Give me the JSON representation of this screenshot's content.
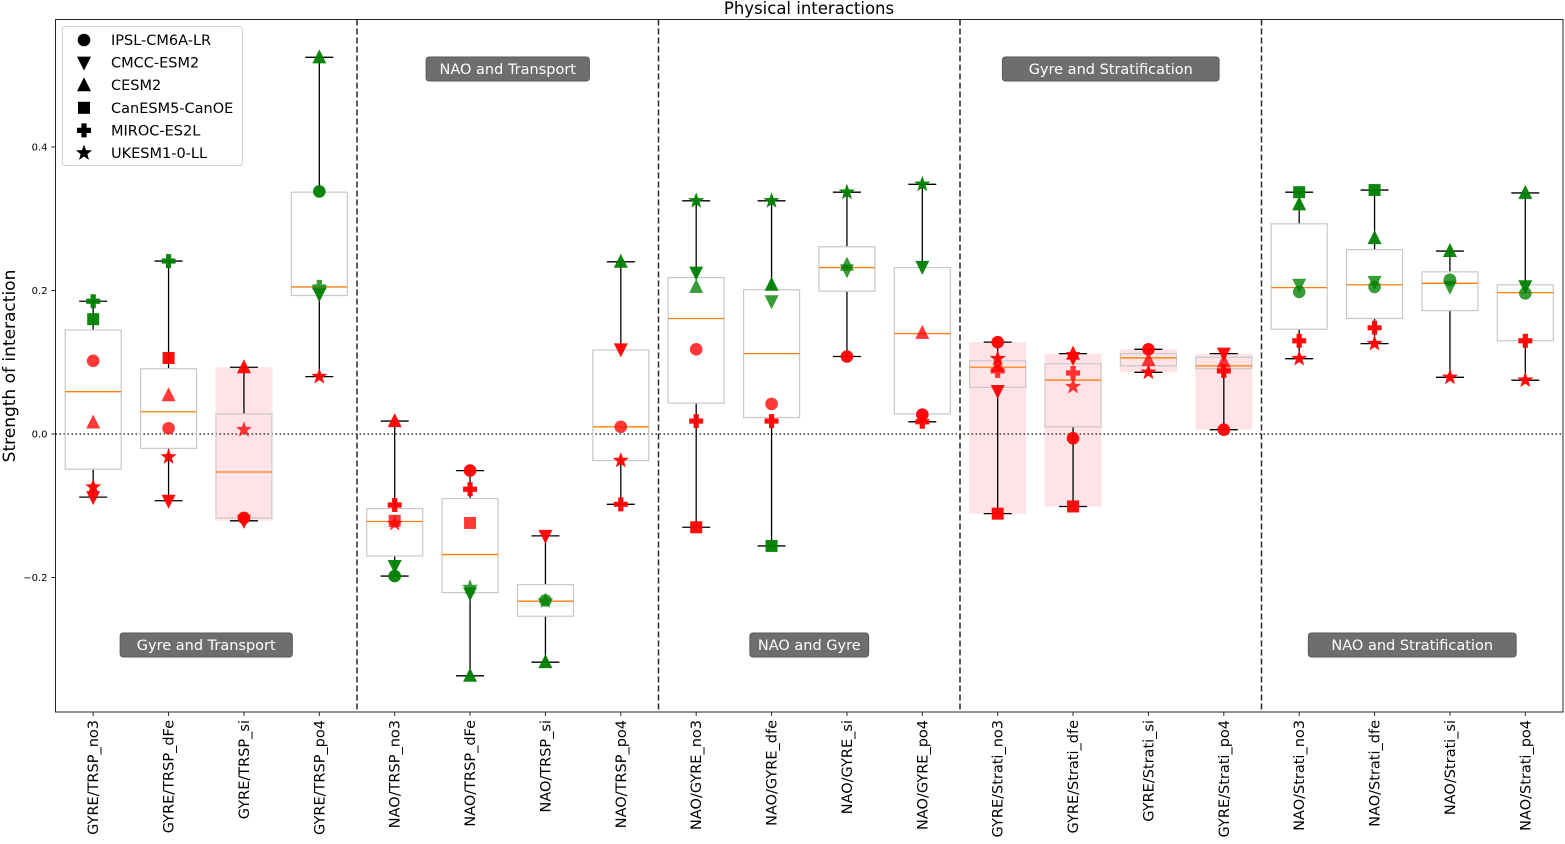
{
  "chart_data": {
    "type": "box-scatter",
    "title": "Physical interactions",
    "xlabel": "",
    "ylabel": "Strength of interaction",
    "ylim": [
      -0.382,
      0.58
    ],
    "yticks": [
      -0.2,
      0.0,
      0.2,
      0.4
    ],
    "ytick_labels": [
      "−0.2",
      "0.0",
      "0.2",
      "0.4"
    ],
    "zero_line": true,
    "grid": false,
    "legend_position": "top-left",
    "legend": [
      {
        "model": "IPSL-CM6A-LR",
        "marker": "circle"
      },
      {
        "model": "CMCC-ESM2",
        "marker": "triangle-down"
      },
      {
        "model": "CESM2",
        "marker": "triangle-up"
      },
      {
        "model": "CanESM5-CanOE",
        "marker": "square"
      },
      {
        "model": "MIROC-ES2L",
        "marker": "plus"
      },
      {
        "model": "UKESM1-0-LL",
        "marker": "star"
      }
    ],
    "colors": {
      "positive_significant": "#008000",
      "negative_or_other": "#ff0000",
      "median": "#ff7f0e",
      "box_edge": "#c8c8c8",
      "shade": "#ffc0c8",
      "annotation_bg": "#6e6e6e"
    },
    "groups": [
      {
        "label": "Gyre and Transport",
        "columns": [
          0,
          3
        ],
        "annotation_position": "bottom"
      },
      {
        "label": "NAO and Transport",
        "columns": [
          4,
          7
        ],
        "annotation_position": "top"
      },
      {
        "label": "NAO and Gyre",
        "columns": [
          8,
          11
        ],
        "annotation_position": "bottom"
      },
      {
        "label": "Gyre and Stratification",
        "columns": [
          12,
          15
        ],
        "annotation_position": "top"
      },
      {
        "label": "NAO and Stratification",
        "columns": [
          16,
          19
        ],
        "annotation_position": "bottom"
      }
    ],
    "categories": [
      "GYRE/TRSP_no3",
      "GYRE/TRSP_dFe",
      "GYRE/TRSP_si",
      "GYRE/TRSP_po4",
      "NAO/TRSP_no3",
      "NAO/TRSP_dFe",
      "NAO/TRSP_si",
      "NAO/TRSP_po4",
      "NAO/GYRE_no3",
      "NAO/GYRE_dfe",
      "NAO/GYRE_si",
      "NAO/GYRE_po4",
      "GYRE/Strati_no3",
      "GYRE/Strati_dfe",
      "GYRE/Strati_si",
      "GYRE/Strati_po4",
      "NAO/Strati_no3",
      "NAO/Strati_dfe",
      "NAO/Strati_si",
      "NAO/Strati_po4"
    ],
    "boxes": [
      {
        "q1": -0.049,
        "median": 0.059,
        "q3": 0.145,
        "whislo": -0.088,
        "whishi": 0.185,
        "shaded": false
      },
      {
        "q1": -0.02,
        "median": 0.031,
        "q3": 0.091,
        "whislo": -0.093,
        "whishi": 0.241,
        "shaded": false
      },
      {
        "q1": -0.117,
        "median": -0.053,
        "q3": 0.028,
        "whislo": -0.121,
        "whishi": 0.093,
        "shaded": true
      },
      {
        "q1": 0.193,
        "median": 0.205,
        "q3": 0.337,
        "whislo": 0.08,
        "whishi": 0.525,
        "shaded": false
      },
      {
        "q1": -0.17,
        "median": -0.122,
        "q3": -0.104,
        "whislo": -0.198,
        "whishi": 0.018,
        "shaded": false
      },
      {
        "q1": -0.221,
        "median": -0.168,
        "q3": -0.09,
        "whislo": -0.337,
        "whishi": -0.051,
        "shaded": false
      },
      {
        "q1": -0.254,
        "median": -0.233,
        "q3": -0.21,
        "whislo": -0.318,
        "whishi": -0.142,
        "shaded": false
      },
      {
        "q1": -0.037,
        "median": 0.01,
        "q3": 0.117,
        "whislo": -0.098,
        "whishi": 0.24,
        "shaded": false
      },
      {
        "q1": 0.043,
        "median": 0.161,
        "q3": 0.218,
        "whislo": -0.13,
        "whishi": 0.325,
        "shaded": false
      },
      {
        "q1": 0.023,
        "median": 0.112,
        "q3": 0.201,
        "whislo": -0.156,
        "whishi": 0.325,
        "shaded": false
      },
      {
        "q1": 0.199,
        "median": 0.232,
        "q3": 0.261,
        "whislo": 0.108,
        "whishi": 0.337,
        "shaded": false
      },
      {
        "q1": 0.028,
        "median": 0.14,
        "q3": 0.232,
        "whislo": 0.017,
        "whishi": 0.348,
        "shaded": false
      },
      {
        "q1": 0.065,
        "median": 0.093,
        "q3": 0.102,
        "whislo": -0.111,
        "whishi": 0.128,
        "shaded": true
      },
      {
        "q1": 0.01,
        "median": 0.075,
        "q3": 0.098,
        "whislo": -0.101,
        "whishi": 0.112,
        "shaded": true
      },
      {
        "q1": 0.095,
        "median": 0.106,
        "q3": 0.112,
        "whislo": 0.086,
        "whishi": 0.118,
        "shaded": true
      },
      {
        "q1": 0.091,
        "median": 0.095,
        "q3": 0.107,
        "whislo": 0.006,
        "whishi": 0.112,
        "shaded": true
      },
      {
        "q1": 0.146,
        "median": 0.204,
        "q3": 0.293,
        "whislo": 0.105,
        "whishi": 0.337,
        "shaded": false
      },
      {
        "q1": 0.161,
        "median": 0.208,
        "q3": 0.257,
        "whislo": 0.126,
        "whishi": 0.34,
        "shaded": false
      },
      {
        "q1": 0.172,
        "median": 0.21,
        "q3": 0.226,
        "whislo": 0.079,
        "whishi": 0.255,
        "shaded": false
      },
      {
        "q1": 0.13,
        "median": 0.197,
        "q3": 0.208,
        "whislo": 0.075,
        "whishi": 0.336,
        "shaded": false
      }
    ],
    "points": [
      [
        {
          "m": "circle",
          "v": 0.102,
          "c": "r"
        },
        {
          "m": "triangle-down",
          "v": -0.088,
          "c": "r"
        },
        {
          "m": "triangle-up",
          "v": 0.016,
          "c": "r"
        },
        {
          "m": "square",
          "v": 0.16,
          "c": "g"
        },
        {
          "m": "plus",
          "v": 0.185,
          "c": "g"
        },
        {
          "m": "star",
          "v": -0.074,
          "c": "r"
        }
      ],
      [
        {
          "m": "circle",
          "v": 0.008,
          "c": "r"
        },
        {
          "m": "triangle-down",
          "v": -0.093,
          "c": "r"
        },
        {
          "m": "triangle-up",
          "v": 0.054,
          "c": "r"
        },
        {
          "m": "square",
          "v": 0.106,
          "c": "r"
        },
        {
          "m": "plus",
          "v": 0.241,
          "c": "g"
        },
        {
          "m": "star",
          "v": -0.032,
          "c": "r"
        }
      ],
      [
        {
          "m": "circle",
          "v": -0.117,
          "c": "r"
        },
        {
          "m": "triangle-down",
          "v": -0.121,
          "c": "r"
        },
        {
          "m": "triangle-up",
          "v": 0.093,
          "c": "r"
        },
        {
          "m": "star",
          "v": 0.006,
          "c": "r"
        }
      ],
      [
        {
          "m": "circle",
          "v": 0.338,
          "c": "g"
        },
        {
          "m": "triangle-down",
          "v": 0.195,
          "c": "g"
        },
        {
          "m": "triangle-up",
          "v": 0.525,
          "c": "g"
        },
        {
          "m": "plus",
          "v": 0.205,
          "c": "g"
        },
        {
          "m": "star",
          "v": 0.08,
          "c": "r"
        }
      ],
      [
        {
          "m": "circle",
          "v": -0.198,
          "c": "g"
        },
        {
          "m": "triangle-down",
          "v": -0.184,
          "c": "g"
        },
        {
          "m": "triangle-up",
          "v": 0.018,
          "c": "r"
        },
        {
          "m": "star",
          "v": -0.125,
          "c": "r"
        },
        {
          "m": "square",
          "v": -0.121,
          "c": "r"
        },
        {
          "m": "plus",
          "v": -0.099,
          "c": "r"
        }
      ],
      [
        {
          "m": "circle",
          "v": -0.051,
          "c": "r"
        },
        {
          "m": "triangle-down",
          "v": -0.222,
          "c": "g"
        },
        {
          "m": "triangle-up",
          "v": -0.337,
          "c": "g"
        },
        {
          "m": "square",
          "v": -0.124,
          "c": "r"
        },
        {
          "m": "plus",
          "v": -0.077,
          "c": "r"
        },
        {
          "m": "star",
          "v": -0.214,
          "c": "g"
        }
      ],
      [
        {
          "m": "circle",
          "v": -0.232,
          "c": "g"
        },
        {
          "m": "triangle-down",
          "v": -0.142,
          "c": "r"
        },
        {
          "m": "triangle-up",
          "v": -0.318,
          "c": "g"
        },
        {
          "m": "star",
          "v": -0.233,
          "c": "g"
        }
      ],
      [
        {
          "m": "circle",
          "v": 0.01,
          "c": "r"
        },
        {
          "m": "triangle-down",
          "v": 0.118,
          "c": "r"
        },
        {
          "m": "triangle-up",
          "v": 0.24,
          "c": "g"
        },
        {
          "m": "plus",
          "v": -0.098,
          "c": "r"
        },
        {
          "m": "star",
          "v": -0.037,
          "c": "r"
        }
      ],
      [
        {
          "m": "circle",
          "v": 0.118,
          "c": "r"
        },
        {
          "m": "triangle-down",
          "v": 0.225,
          "c": "g"
        },
        {
          "m": "triangle-up",
          "v": 0.205,
          "c": "g"
        },
        {
          "m": "square",
          "v": -0.13,
          "c": "r"
        },
        {
          "m": "plus",
          "v": 0.018,
          "c": "r"
        },
        {
          "m": "star",
          "v": 0.325,
          "c": "g"
        }
      ],
      [
        {
          "m": "circle",
          "v": 0.042,
          "c": "r"
        },
        {
          "m": "triangle-down",
          "v": 0.185,
          "c": "g"
        },
        {
          "m": "triangle-up",
          "v": 0.208,
          "c": "g"
        },
        {
          "m": "square",
          "v": -0.156,
          "c": "g"
        },
        {
          "m": "plus",
          "v": 0.018,
          "c": "r"
        },
        {
          "m": "star",
          "v": 0.325,
          "c": "g"
        }
      ],
      [
        {
          "m": "circle",
          "v": 0.108,
          "c": "r"
        },
        {
          "m": "triangle-down",
          "v": 0.228,
          "c": "g"
        },
        {
          "m": "triangle-up",
          "v": 0.236,
          "c": "g"
        },
        {
          "m": "star",
          "v": 0.337,
          "c": "g"
        }
      ],
      [
        {
          "m": "circle",
          "v": 0.027,
          "c": "r"
        },
        {
          "m": "triangle-down",
          "v": 0.233,
          "c": "g"
        },
        {
          "m": "triangle-up",
          "v": 0.141,
          "c": "r"
        },
        {
          "m": "plus",
          "v": 0.017,
          "c": "r"
        },
        {
          "m": "star",
          "v": 0.348,
          "c": "g"
        }
      ],
      [
        {
          "m": "circle",
          "v": 0.128,
          "c": "r"
        },
        {
          "m": "triangle-down",
          "v": 0.06,
          "c": "r"
        },
        {
          "m": "triangle-up",
          "v": 0.095,
          "c": "r"
        },
        {
          "m": "square",
          "v": -0.111,
          "c": "r"
        },
        {
          "m": "plus",
          "v": 0.088,
          "c": "r"
        },
        {
          "m": "star",
          "v": 0.105,
          "c": "r"
        }
      ],
      [
        {
          "m": "circle",
          "v": -0.006,
          "c": "r"
        },
        {
          "m": "triangle-down",
          "v": 0.106,
          "c": "r"
        },
        {
          "m": "triangle-up",
          "v": 0.112,
          "c": "r"
        },
        {
          "m": "square",
          "v": -0.101,
          "c": "r"
        },
        {
          "m": "plus",
          "v": 0.085,
          "c": "r"
        },
        {
          "m": "star",
          "v": 0.066,
          "c": "r"
        }
      ],
      [
        {
          "m": "circle",
          "v": 0.118,
          "c": "r"
        },
        {
          "m": "triangle-up",
          "v": 0.103,
          "c": "r"
        },
        {
          "m": "star",
          "v": 0.086,
          "c": "r"
        }
      ],
      [
        {
          "m": "circle",
          "v": 0.006,
          "c": "r"
        },
        {
          "m": "triangle-down",
          "v": 0.112,
          "c": "r"
        },
        {
          "m": "triangle-up",
          "v": 0.101,
          "c": "r"
        },
        {
          "m": "plus",
          "v": 0.088,
          "c": "r"
        }
      ],
      [
        {
          "m": "circle",
          "v": 0.198,
          "c": "g"
        },
        {
          "m": "triangle-down",
          "v": 0.208,
          "c": "g"
        },
        {
          "m": "triangle-up",
          "v": 0.32,
          "c": "g"
        },
        {
          "m": "square",
          "v": 0.337,
          "c": "g"
        },
        {
          "m": "plus",
          "v": 0.13,
          "c": "r"
        },
        {
          "m": "star",
          "v": 0.105,
          "c": "r"
        }
      ],
      [
        {
          "m": "circle",
          "v": 0.205,
          "c": "g"
        },
        {
          "m": "triangle-down",
          "v": 0.212,
          "c": "g"
        },
        {
          "m": "triangle-up",
          "v": 0.273,
          "c": "g"
        },
        {
          "m": "square",
          "v": 0.34,
          "c": "g"
        },
        {
          "m": "plus",
          "v": 0.148,
          "c": "r"
        },
        {
          "m": "star",
          "v": 0.126,
          "c": "r"
        }
      ],
      [
        {
          "m": "circle",
          "v": 0.215,
          "c": "g"
        },
        {
          "m": "triangle-down",
          "v": 0.205,
          "c": "g"
        },
        {
          "m": "triangle-up",
          "v": 0.255,
          "c": "g"
        },
        {
          "m": "star",
          "v": 0.079,
          "c": "r"
        }
      ],
      [
        {
          "m": "circle",
          "v": 0.196,
          "c": "g"
        },
        {
          "m": "triangle-down",
          "v": 0.206,
          "c": "g"
        },
        {
          "m": "triangle-up",
          "v": 0.336,
          "c": "g"
        },
        {
          "m": "plus",
          "v": 0.13,
          "c": "r"
        },
        {
          "m": "star",
          "v": 0.075,
          "c": "r"
        }
      ]
    ]
  }
}
